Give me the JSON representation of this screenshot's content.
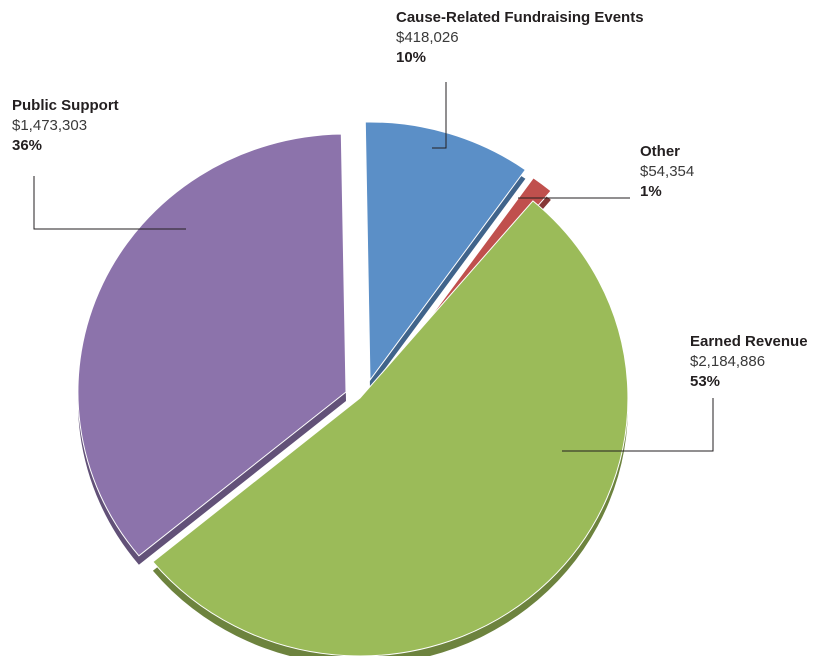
{
  "chart_data": {
    "type": "pie",
    "title": "",
    "slices": [
      {
        "label": "Cause-Related  Fundraising Events",
        "amount": "$418,026",
        "percent": "10%",
        "value": 418026,
        "color": "#5b8fc7"
      },
      {
        "label": "Other",
        "amount": "$54,354",
        "percent": "1%",
        "value": 54354,
        "color": "#c0504d"
      },
      {
        "label": "Earned Revenue",
        "amount": "$2,184,886",
        "percent": "53%",
        "value": 2184886,
        "color": "#9bbb59"
      },
      {
        "label": "Public Support",
        "amount": "$1,473,303",
        "percent": "36%",
        "value": 1473303,
        "color": "#8c73ab"
      }
    ],
    "exploded": true,
    "three_d": true
  }
}
